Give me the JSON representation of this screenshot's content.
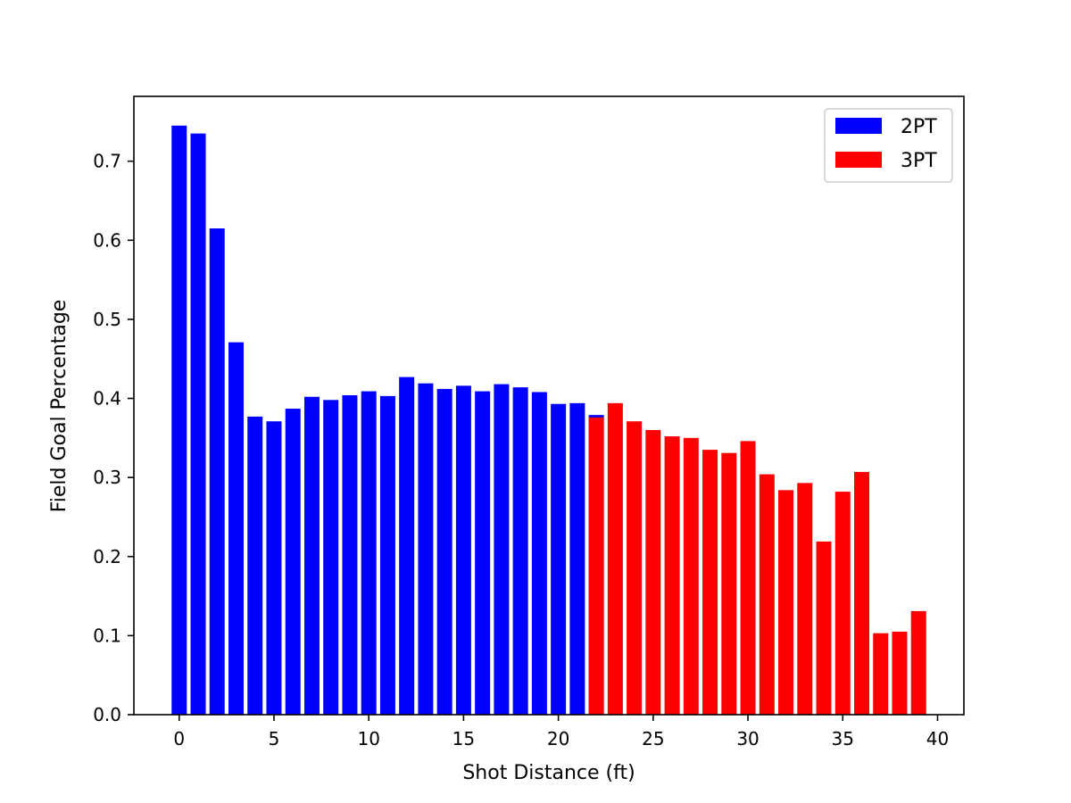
{
  "chart_data": {
    "type": "bar",
    "title": "",
    "xlabel": "Shot Distance (ft)",
    "ylabel": "Field Goal Percentage",
    "xlim": [
      -2.39,
      41.39
    ],
    "ylim": [
      0,
      0.782
    ],
    "xticks": [
      0,
      5,
      10,
      15,
      20,
      25,
      30,
      35,
      40
    ],
    "yticks": [
      0.0,
      0.1,
      0.2,
      0.3,
      0.4,
      0.5,
      0.6,
      0.7
    ],
    "grid": false,
    "legend_position": "upper right",
    "bar_width": 0.8,
    "series": [
      {
        "name": "2PT",
        "color": "#0000ff",
        "x": [
          0,
          1,
          2,
          3,
          4,
          5,
          6,
          7,
          8,
          9,
          10,
          11,
          12,
          13,
          14,
          15,
          16,
          17,
          18,
          19,
          20,
          21,
          22
        ],
        "values": [
          0.745,
          0.735,
          0.615,
          0.471,
          0.377,
          0.371,
          0.387,
          0.402,
          0.398,
          0.404,
          0.409,
          0.403,
          0.427,
          0.419,
          0.412,
          0.416,
          0.409,
          0.418,
          0.414,
          0.408,
          0.393,
          0.394,
          0.379
        ]
      },
      {
        "name": "3PT",
        "color": "#ff0000",
        "x": [
          22,
          23,
          24,
          25,
          26,
          27,
          28,
          29,
          30,
          31,
          32,
          33,
          34,
          35,
          36,
          37,
          38,
          39
        ],
        "values": [
          0.376,
          0.394,
          0.371,
          0.36,
          0.352,
          0.35,
          0.335,
          0.331,
          0.346,
          0.304,
          0.284,
          0.293,
          0.219,
          0.282,
          0.307,
          0.103,
          0.105,
          0.131
        ]
      }
    ]
  }
}
